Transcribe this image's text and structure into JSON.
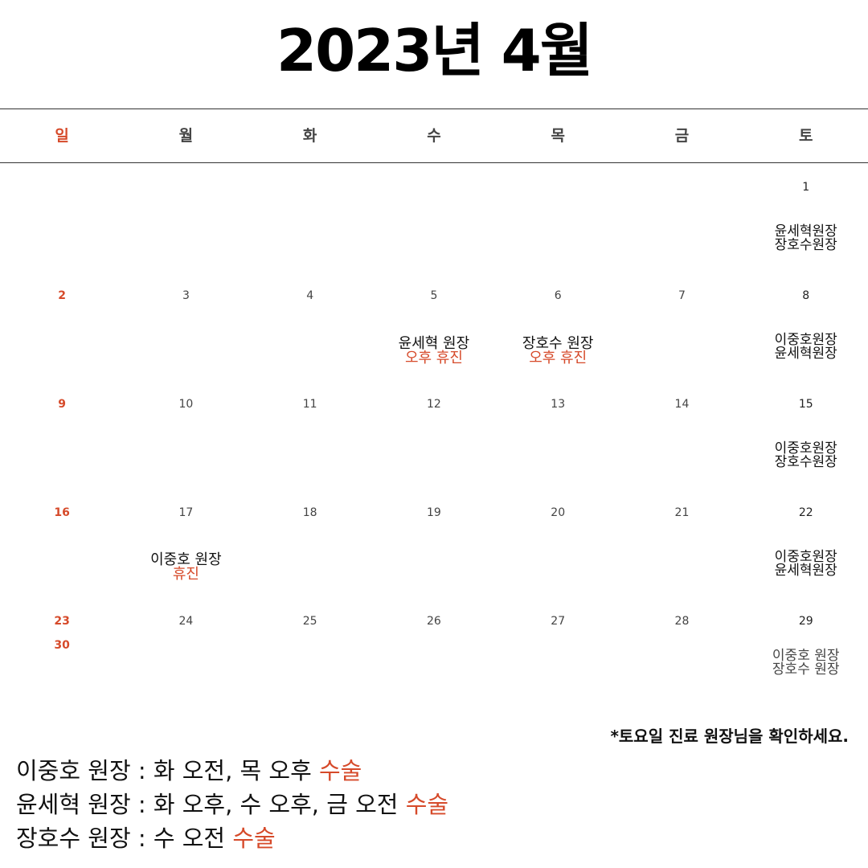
{
  "title": "2023년 4월",
  "weekdays": [
    "일",
    "월",
    "화",
    "수",
    "목",
    "금",
    "토"
  ],
  "weeks": [
    [
      "",
      "",
      "",
      "",
      "",
      "",
      "1"
    ],
    [
      "2",
      "3",
      "4",
      "5",
      "6",
      "7",
      "8"
    ],
    [
      "9",
      "10",
      "11",
      "12",
      "13",
      "14",
      "15"
    ],
    [
      "16",
      "17",
      "18",
      "19",
      "20",
      "21",
      "22"
    ],
    [
      "23",
      "24",
      "25",
      "26",
      "27",
      "28",
      "29"
    ]
  ],
  "extra_sunday": "30",
  "saturday_doctors": {
    "1": [
      "윤세혁원장",
      "장호수원장"
    ],
    "8": [
      "이중호원장",
      "윤세혁원장"
    ],
    "15": [
      "이중호원장",
      "장호수원장"
    ],
    "22": [
      "이중호원장",
      "윤세혁원장"
    ],
    "29": [
      "이중호 원장",
      "장호수 원장"
    ]
  },
  "notes": {
    "d5": {
      "doctor": "윤세혁 원장",
      "status": "오후 휴진"
    },
    "d6": {
      "doctor": "장호수 원장",
      "status": "오후 휴진"
    },
    "d17": {
      "doctor": "이중호 원장",
      "status": "휴진"
    }
  },
  "footnote": "*토요일 진료 원장님을 확인하세요.",
  "legend": [
    {
      "text": "이중호 원장 : 화 오전, 목 오후",
      "surgery": "수술"
    },
    {
      "text": "윤세혁 원장 : 화 오후, 수 오후, 금 오전",
      "surgery": "수술"
    },
    {
      "text": "장호수 원장 : 수 오전",
      "surgery": "수술"
    }
  ],
  "colors": {
    "accent": "#d64a2a",
    "text": "#111111"
  }
}
